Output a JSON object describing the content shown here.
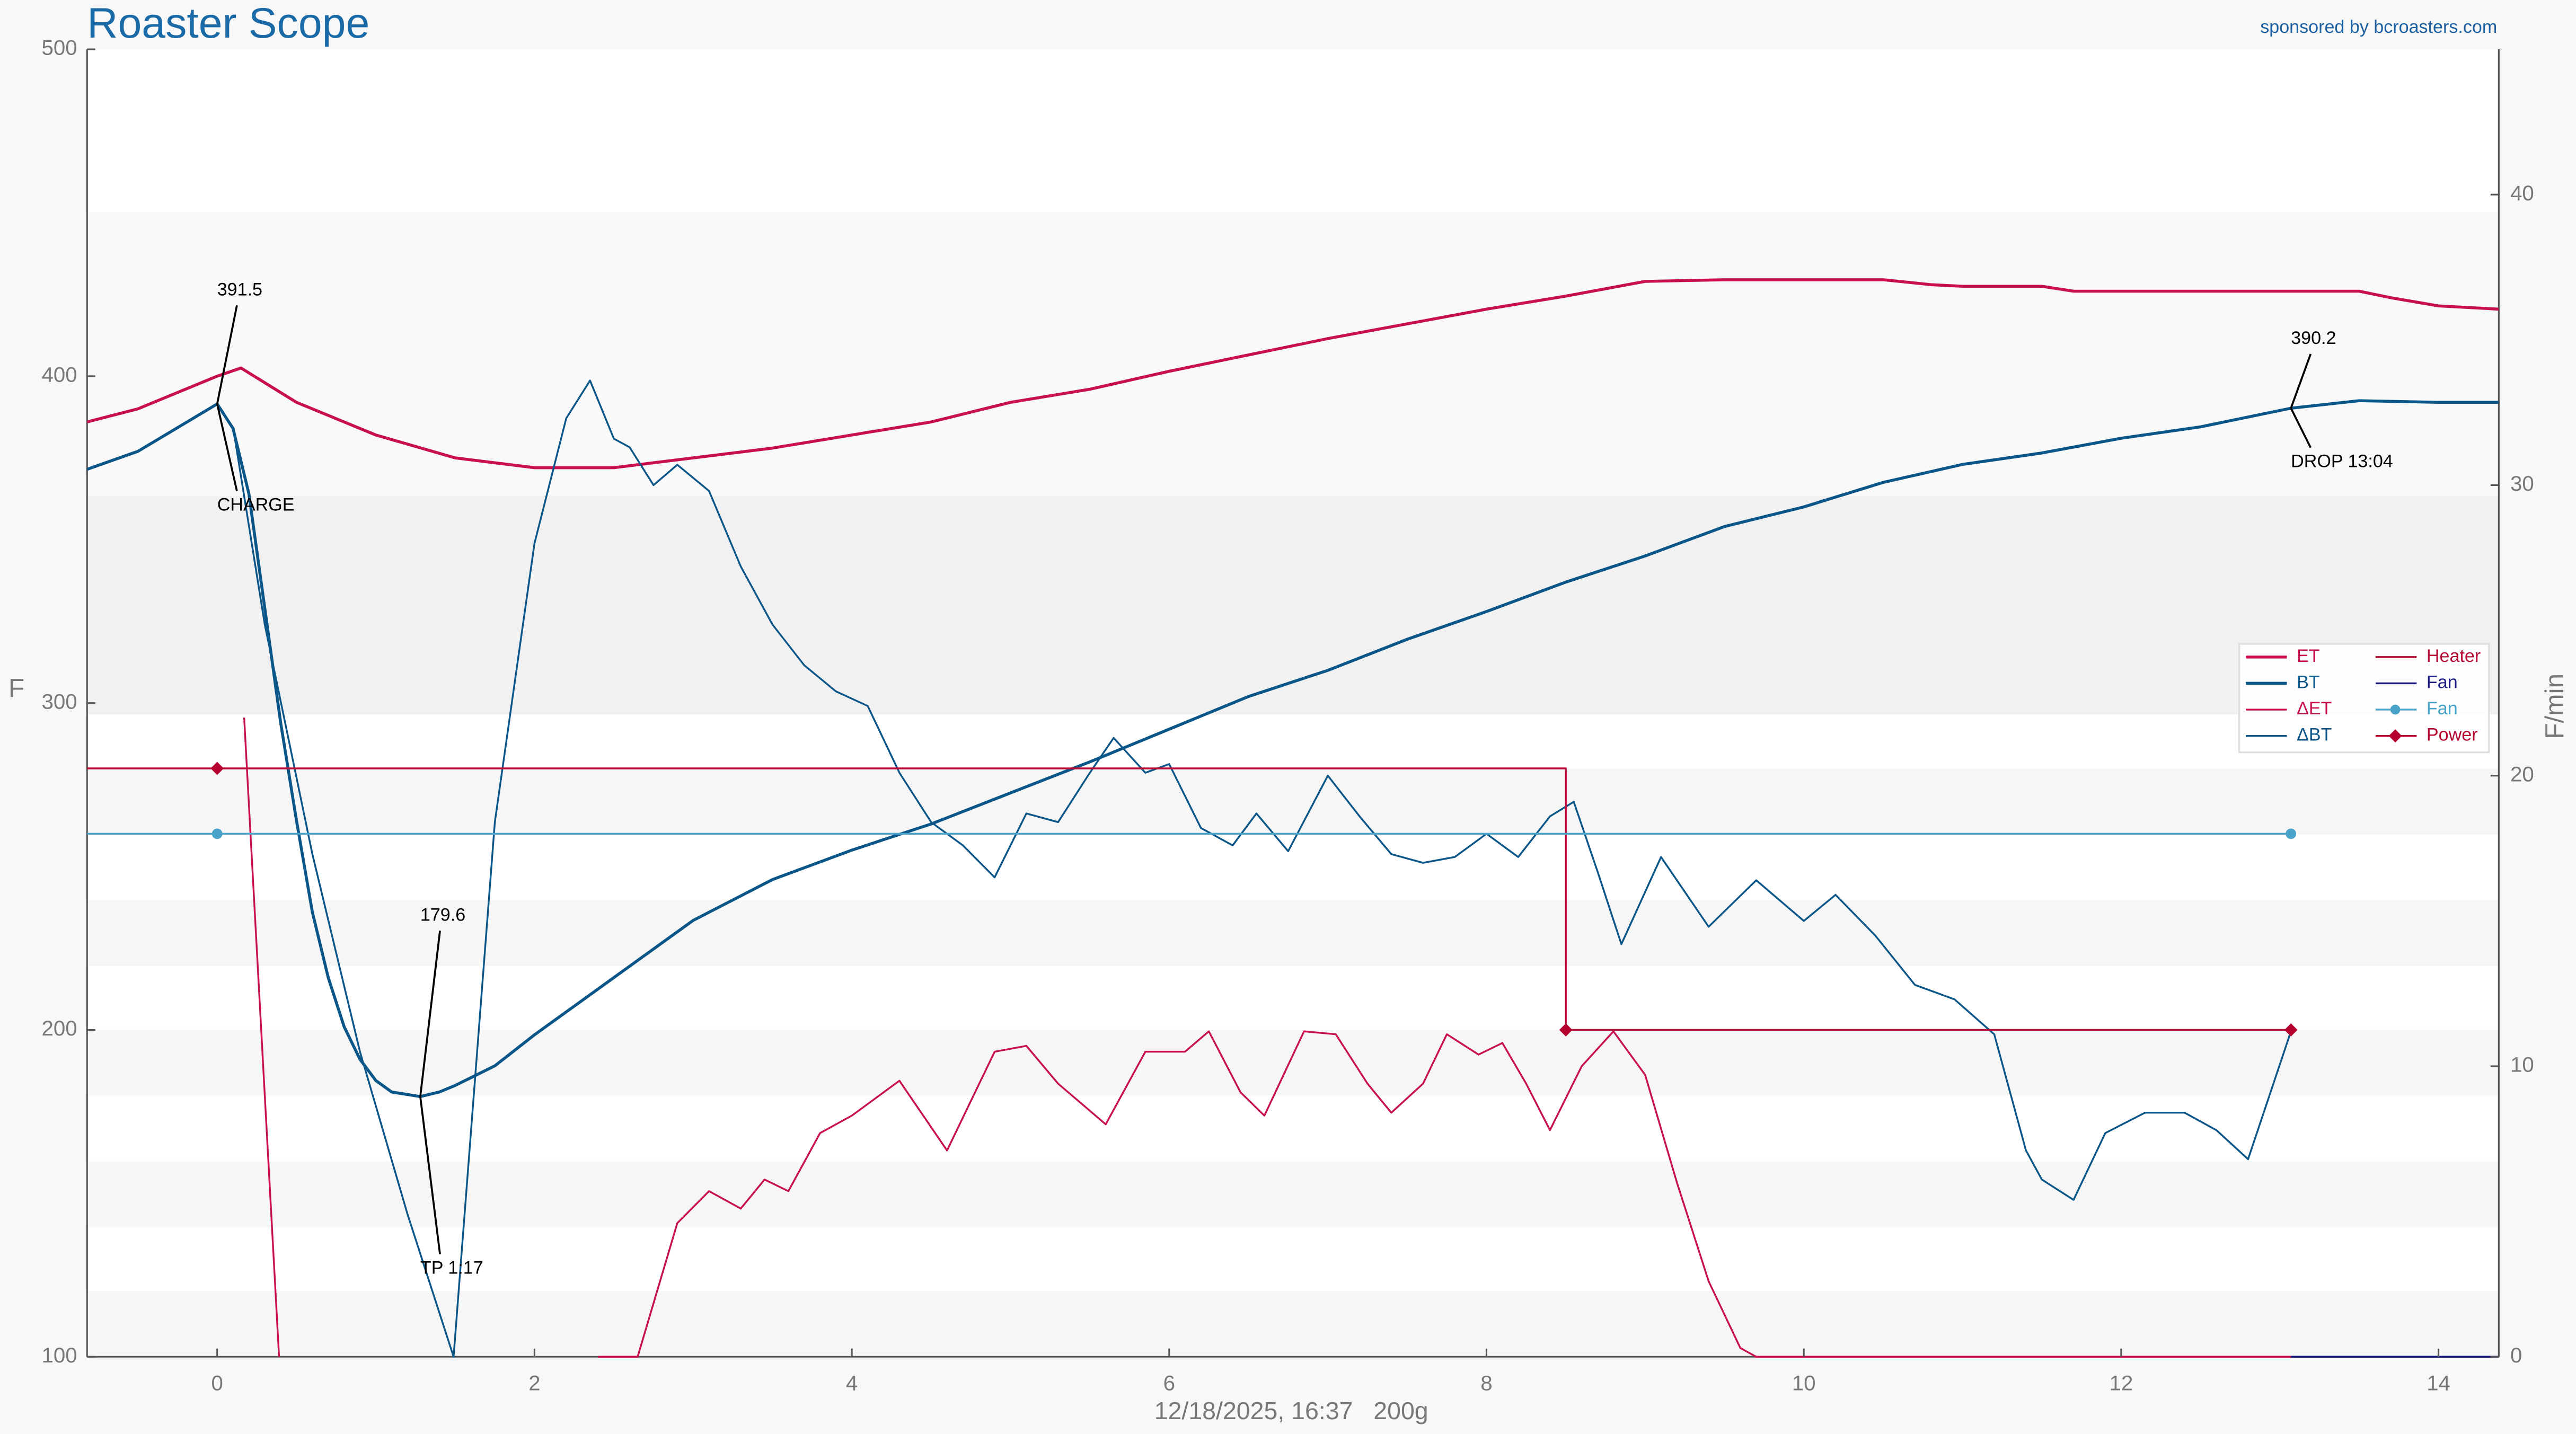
{
  "chart_data": {
    "type": "line",
    "title": "Roaster Scope",
    "subtitle": "sponsored by bcroasters.com",
    "footer": "12/18/2025, 16:37   200g",
    "y_label": "F",
    "y2_label": "F/min",
    "xlim": [
      -0.82,
      14.38
    ],
    "xticks": [
      0,
      2,
      4,
      6,
      8,
      10,
      12,
      14
    ],
    "ylim": [
      100,
      500
    ],
    "yticks": [
      100,
      200,
      300,
      400,
      500
    ],
    "y2lim": [
      0,
      45
    ],
    "y2ticks": [
      0,
      10,
      20,
      30,
      40
    ],
    "grid": false,
    "legend": "right",
    "series": [
      {
        "name": "ET",
        "color": "#c8104e",
        "width": 1.8,
        "x": [
          -0.82,
          -0.5,
          0,
          0.15,
          0.5,
          1,
          1.5,
          2,
          2.5,
          3,
          3.5,
          4,
          4.5,
          5,
          5.5,
          6,
          6.5,
          7,
          7.5,
          8,
          8.5,
          9,
          9.5,
          10,
          10.5,
          10.8,
          11,
          11.5,
          11.7,
          12,
          12.5,
          13,
          13.5,
          13.7,
          14,
          14.38
        ],
        "values": [
          386,
          390,
          400,
          402.5,
          392,
          382,
          375,
          372,
          372,
          375,
          378,
          382,
          386,
          392,
          396,
          401.5,
          406.5,
          411.5,
          416,
          420.5,
          424.5,
          429,
          429.5,
          429.5,
          429.5,
          428,
          427.5,
          427.5,
          426,
          426,
          426,
          426,
          426,
          424,
          421.5,
          420.5
        ]
      },
      {
        "name": "BT",
        "color": "#0b5688",
        "width": 1.8,
        "x": [
          -0.82,
          -0.5,
          0,
          0.1,
          0.2,
          0.3,
          0.4,
          0.5,
          0.6,
          0.7,
          0.8,
          0.9,
          1,
          1.1,
          1.28,
          1.4,
          1.5,
          1.75,
          2,
          2.5,
          3,
          3.5,
          4,
          4.5,
          5,
          5.5,
          6,
          6.5,
          7,
          7.5,
          8,
          8.5,
          9,
          9.5,
          10,
          10.5,
          11,
          11.5,
          12,
          12.5,
          13.07,
          13.5,
          14,
          14.38
        ],
        "values": [
          371.5,
          377,
          391.5,
          384,
          364,
          329,
          294,
          264,
          236,
          216,
          201,
          191,
          184.5,
          181,
          179.6,
          181,
          183,
          189,
          198.5,
          216,
          233.5,
          246,
          255,
          263,
          272.5,
          282,
          292,
          302,
          310,
          319.5,
          328,
          337,
          345,
          354,
          360,
          367.5,
          373,
          376.5,
          381,
          384.5,
          390.2,
          392.5,
          392,
          392
        ]
      },
      {
        "name": "ΔET",
        "color": "#c8104e",
        "width": 1.1,
        "axis": "y2",
        "x": [
          0.17,
          0.39,
          0.4,
          2.4,
          2.65,
          2.9,
          3.1,
          3.3,
          3.45,
          3.6,
          3.8,
          4,
          4.3,
          4.6,
          4.9,
          5.1,
          5.3,
          5.6,
          5.85,
          6.1,
          6.25,
          6.45,
          6.6,
          6.85,
          7.05,
          7.25,
          7.4,
          7.6,
          7.75,
          7.95,
          8.1,
          8.25,
          8.4,
          8.6,
          8.8,
          9,
          9.2,
          9.4,
          9.6,
          9.7,
          14.38
        ],
        "values": [
          22,
          0,
          null,
          0,
          0,
          4.6,
          5.7,
          5.1,
          6.1,
          5.7,
          7.7,
          8.3,
          9.5,
          7.1,
          10.5,
          10.7,
          9.4,
          8,
          10.5,
          10.5,
          11.2,
          9.1,
          8.3,
          11.2,
          11.1,
          9.4,
          8.4,
          9.4,
          11.1,
          10.4,
          10.8,
          9.4,
          7.8,
          10,
          11.2,
          9.7,
          6,
          2.6,
          0.3,
          0,
          0
        ]
      },
      {
        "name": "ΔBT",
        "color": "#0b5688",
        "width": 1.1,
        "axis": "y2",
        "x": [
          0.1,
          0.3,
          0.6,
          0.9,
          1.2,
          1.49,
          1.75,
          2,
          2.2,
          2.35,
          2.5,
          2.6,
          2.75,
          2.9,
          3.1,
          3.3,
          3.5,
          3.7,
          3.9,
          4.1,
          4.3,
          4.5,
          4.7,
          4.9,
          5.1,
          5.3,
          5.5,
          5.65,
          5.85,
          6,
          6.2,
          6.4,
          6.55,
          6.75,
          7,
          7.2,
          7.4,
          7.6,
          7.8,
          8,
          8.2,
          8.4,
          8.55,
          8.7,
          8.85,
          9.1,
          9.4,
          9.7,
          10,
          10.2,
          10.45,
          10.7,
          10.95,
          11.2,
          11.4,
          11.5,
          11.7,
          11.9,
          12.15,
          12.4,
          12.6,
          12.8,
          13.07
        ],
        "values": [
          32,
          25.2,
          17.3,
          10.5,
          4.9,
          0,
          18.4,
          28,
          32.3,
          33.6,
          31.6,
          31.3,
          30,
          30.7,
          29.8,
          27.2,
          25.2,
          23.8,
          22.9,
          22.4,
          20.1,
          18.4,
          17.6,
          16.5,
          18.7,
          18.4,
          20.1,
          21.3,
          20.1,
          20.4,
          18.2,
          17.6,
          18.7,
          17.4,
          20,
          18.6,
          17.3,
          17,
          17.2,
          18,
          17.2,
          18.6,
          19.1,
          16.7,
          14.2,
          17.2,
          14.8,
          16.4,
          15,
          15.9,
          14.5,
          12.8,
          12.3,
          11.1,
          7.1,
          6.1,
          5.4,
          7.7,
          8.4,
          8.4,
          7.8,
          6.8,
          11.2
        ]
      },
      {
        "name": "Heater",
        "color": "#b80b35",
        "width": 1.1,
        "step": true,
        "x": [
          -0.82,
          8.5,
          13.07
        ],
        "values": [
          280,
          200,
          200
        ]
      },
      {
        "name": "Fan",
        "color": "#1a1a80",
        "width": 1.1,
        "axis": "y2",
        "x": [
          13.07,
          14.38
        ],
        "values": [
          0,
          0
        ]
      },
      {
        "name": "Fan",
        "color": "#4aa3c8",
        "width": 1.1,
        "marker": "circle",
        "x": [
          -0.82,
          0,
          13.07
        ],
        "values": [
          260,
          260,
          260
        ],
        "markers": [
          false,
          true,
          true
        ]
      },
      {
        "name": "Power",
        "color": "#b5002f",
        "width": 1.1,
        "marker": "diamond",
        "line": false,
        "x": [
          0,
          8.5,
          13.07
        ],
        "values": [
          280,
          200,
          200
        ]
      }
    ],
    "annotations": [
      {
        "label": "391.5",
        "x": 0,
        "y": 391.5,
        "dir": "up"
      },
      {
        "label": "CHARGE",
        "x": 0,
        "y": 391.5,
        "dir": "down"
      },
      {
        "label": "179.6",
        "x": 1.28,
        "y": 179.6,
        "dir": "up"
      },
      {
        "label": "TP 1:17",
        "x": 1.28,
        "y": 179.6,
        "dir": "down"
      },
      {
        "label": "390.2",
        "x": 13.07,
        "y": 390.2,
        "dir": "up"
      },
      {
        "label": "DROP 13:04",
        "x": 13.07,
        "y": 390.2,
        "dir": "down"
      }
    ]
  }
}
